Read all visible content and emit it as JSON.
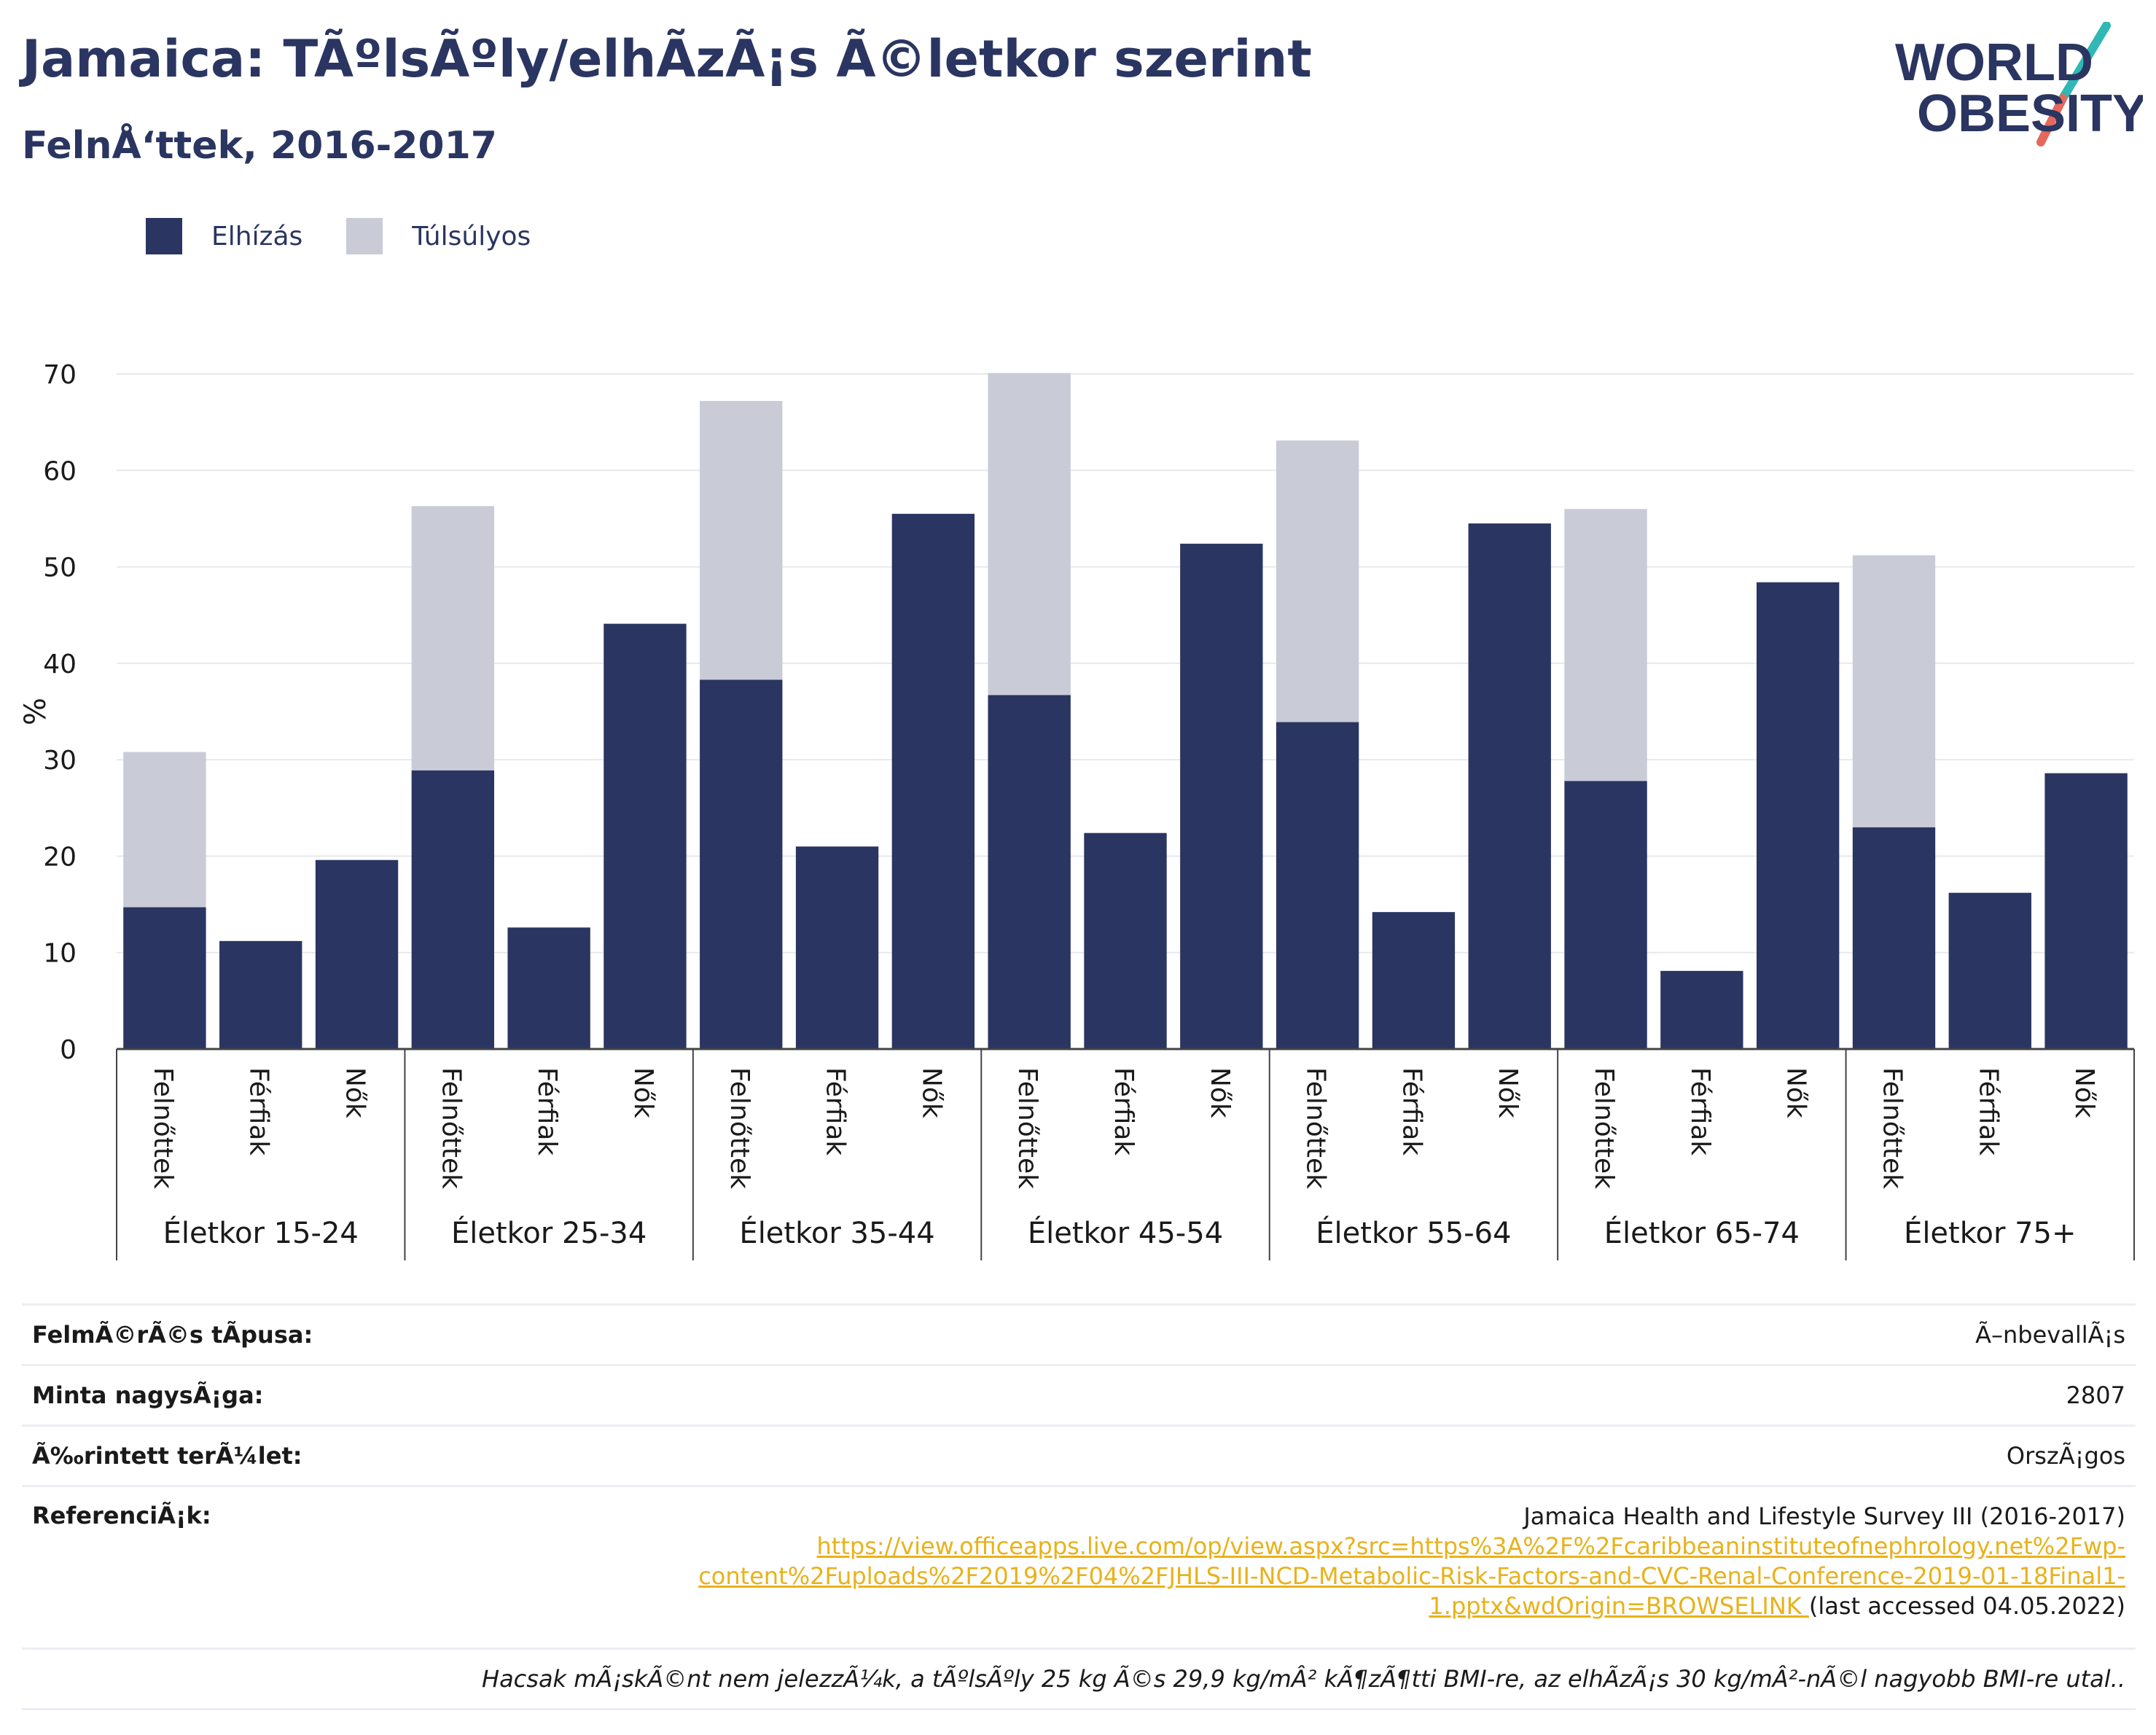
{
  "header": {
    "title": "Jamaica: TÃºlsÃºly/elhÃ­zÃ¡s Ã©letkor szerint",
    "subtitle": "FelnÅ‘ttek, 2016-2017",
    "logo_line1": "WORLD",
    "logo_line2": "OBESITY"
  },
  "legend": {
    "items": [
      {
        "label": "Elhízás",
        "color": "#2a3561"
      },
      {
        "label": "Túlsúlyos",
        "color": "#c9cbd7"
      }
    ]
  },
  "chart_data": {
    "type": "bar",
    "stacked": true,
    "ylabel": "%",
    "ylim": [
      0,
      70
    ],
    "yticks": [
      0,
      10,
      20,
      30,
      40,
      50,
      60,
      70
    ],
    "grid": true,
    "legend_position": "top-left",
    "groups": [
      "Életkor 15-24",
      "Életkor 25-34",
      "Életkor 35-44",
      "Életkor 45-54",
      "Életkor 55-64",
      "Életkor 65-74",
      "Életkor 75+"
    ],
    "subcategories": [
      "Felnőttek",
      "Férfiak",
      "Nők"
    ],
    "series": [
      {
        "name": "Elhízás",
        "color": "#2a3561",
        "values": [
          14.7,
          11.2,
          19.6,
          28.9,
          12.6,
          44.1,
          38.3,
          21.0,
          55.5,
          36.7,
          22.4,
          52.4,
          33.9,
          14.2,
          54.5,
          27.8,
          8.1,
          48.4,
          23.0,
          16.2,
          28.6
        ]
      },
      {
        "name": "Túlsúlyos",
        "color": "#c9cbd7",
        "values": [
          16.1,
          null,
          null,
          27.4,
          null,
          null,
          28.9,
          null,
          null,
          33.4,
          null,
          null,
          29.2,
          null,
          null,
          28.2,
          null,
          null,
          28.2,
          null,
          null
        ]
      }
    ]
  },
  "info": {
    "survey_type_label": "FelmÃ©rÃ©s tÃpusa:",
    "survey_type_value": "Ã–nbevallÃ¡s",
    "sample_size_label": "Minta nagysÃ¡ga:",
    "sample_size_value": "2807",
    "area_label": "Ã‰rintett terÃ¼let:",
    "area_value": "OrszÃ¡gos",
    "references_label": "ReferenciÃ¡k:",
    "reference_title": "Jamaica Health and Lifestyle Survey III (2016-2017)",
    "reference_url": "https://view.officeapps.live.com/op/view.aspx?src=https%3A%2F%2Fcaribbeaninstituteofnephrology.net%2Fwp-content%2Fuploads%2F2019%2F04%2FJHLS-III-NCD-Metabolic-Risk-Factors-and-CVC-Renal-Conference-2019-01-18Final1-1.pptx&wdOrigin=BROWSELINK",
    "reference_url_line1": "https://view.officeapps.live.com/op/view.aspx?src=https%3A%2F%2Fcaribbeaninstituteofnephrology.net%2Fwp-",
    "reference_url_line2": "content%2Fuploads%2F2019%2F04%2FJHLS-III-NCD-Metabolic-Risk-Factors-and-CVC-Renal-Conference-2019-01-18Final1-",
    "reference_url_line3": "1.pptx&wdOrigin=BROWSELINK",
    "reference_accessed": "(last accessed 04.05.2022)",
    "note": "Hacsak mÃ¡skÃ©nt nem jelezzÃ¼k, a tÃºlsÃºly 25 kg Ã©s 29,9 kg/mÂ² kÃ¶zÃ¶tti BMI-re, az elhÃ­zÃ¡s 30 kg/mÂ²-nÃ©l nagyobb BMI-re utal.."
  }
}
